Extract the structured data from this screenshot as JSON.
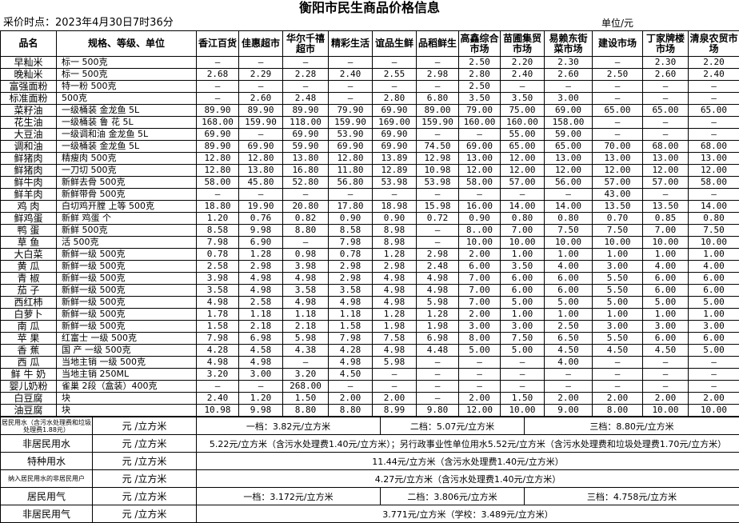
{
  "header": {
    "title": "衡阳市民生商品价格信息",
    "time": "采价时点：2023年4月30日7时36分",
    "unit": "单位/元"
  },
  "table": {
    "columns": [
      "品名",
      "规格、等级、单位",
      "香江百货",
      "佳惠超市",
      "华尔千禧超市",
      "精彩生活",
      "谊品生鲜",
      "品稻鲜生",
      "高鑫综合市场",
      "苗圃集贸市场",
      "易赖东街菜市场",
      "建设市场",
      "丁家牌楼市场",
      "清泉农贸市场"
    ],
    "rows": [
      [
        "早籼米",
        "标一 500克",
        "—",
        "—",
        "—",
        "—",
        "—",
        "—",
        "2.50",
        "2.20",
        "2.30",
        "—",
        "2.30",
        "2.20"
      ],
      [
        "晚籼米",
        "标一 500克",
        "2.68",
        "2.29",
        "2.28",
        "2.40",
        "2.55",
        "2.98",
        "2.80",
        "2.40",
        "2.60",
        "2.50",
        "2.60",
        "2.40"
      ],
      [
        "富强面粉",
        "特一粉 500克",
        "—",
        "—",
        "—",
        "—",
        "—",
        "—",
        "2.50",
        "—",
        "—",
        "—",
        "—",
        "—"
      ],
      [
        "标准面粉",
        "500克",
        "—",
        "2.60",
        "2.48",
        "—",
        "2.80",
        "6.80",
        "3.50",
        "3.50",
        "3.00",
        "—",
        "—",
        "—"
      ],
      [
        "菜籽油",
        "一级桶装 金龙鱼 5L",
        "89.90",
        "89.90",
        "89.90",
        "79.90",
        "69.90",
        "89.00",
        "79.00",
        "75.00",
        "69.00",
        "65.00",
        "65.00",
        "65.00"
      ],
      [
        "花生油",
        "一级桶装 鲁 花 5L",
        "168.00",
        "159.90",
        "118.00",
        "159.90",
        "169.00",
        "159.90",
        "160.00",
        "160.00",
        "158.00",
        "—",
        "—",
        "—"
      ],
      [
        "大豆油",
        "一级调和油 金龙鱼 5L",
        "69.90",
        "—",
        "69.90",
        "53.90",
        "69.90",
        "—",
        "—",
        "55.00",
        "59.00",
        "—",
        "—",
        "—"
      ],
      [
        "调和油",
        "一级桶装 金龙鱼 5L",
        "89.90",
        "69.90",
        "59.90",
        "69.90",
        "69.90",
        "74.50",
        "69.00",
        "65.00",
        "65.00",
        "70.00",
        "68.00",
        "68.00"
      ],
      [
        "鲜猪肉",
        "精瘦肉 500克",
        "12.80",
        "12.80",
        "13.80",
        "12.80",
        "13.89",
        "12.98",
        "13.00",
        "12.00",
        "13.00",
        "13.00",
        "13.00",
        "13.00"
      ],
      [
        "鲜猪肉",
        "一刀切 500克",
        "12.80",
        "13.80",
        "16.80",
        "11.80",
        "12.89",
        "10.98",
        "12.00",
        "12.00",
        "12.00",
        "12.00",
        "12.00",
        "12.00"
      ],
      [
        "鲜牛肉",
        "新鲜去骨 500克",
        "58.00",
        "45.80",
        "52.80",
        "56.80",
        "53.98",
        "53.98",
        "58.00",
        "57.00",
        "56.00",
        "57.00",
        "57.00",
        "58.00"
      ],
      [
        "鲜羊肉",
        "新鲜带骨 500克",
        "—",
        "—",
        "—",
        "—",
        "—",
        "—",
        "—",
        "—",
        "—",
        "43.00",
        "—",
        "—"
      ],
      [
        "鸡 肉",
        "白切鸡开膛 上等 500克",
        "18.80",
        "19.90",
        "20.80",
        "17.80",
        "18.98",
        "15.98",
        "16.00",
        "14.00",
        "14.00",
        "13.50",
        "13.50",
        "14.00"
      ],
      [
        "鲜鸡蛋",
        "新鲜 鸡蛋 个",
        "1.20",
        "0.76",
        "0.82",
        "0.90",
        "0.90",
        "0.72",
        "0.90",
        "0.80",
        "0.80",
        "0.70",
        "0.85",
        "0.80"
      ],
      [
        "鸭 蛋",
        "新鲜 500克",
        "8.58",
        "9.98",
        "8.80",
        "8.58",
        "8.98",
        "—",
        "8..00",
        "7.00",
        "7.50",
        "7.50",
        "7.00",
        "7.50"
      ],
      [
        "草 鱼",
        "活 500克",
        "7.98",
        "6.90",
        "—",
        "7.98",
        "8.98",
        "—",
        "10.00",
        "10.00",
        "10.00",
        "10.00",
        "10.00",
        "10.00"
      ],
      [
        "大白菜",
        "新鲜一级 500克",
        "0.78",
        "1.28",
        "0.98",
        "0.78",
        "1.28",
        "2.98",
        "2.00",
        "1.00",
        "1.00",
        "1.00",
        "1.00",
        "1.00"
      ],
      [
        "黄 瓜",
        "新鲜一级 500克",
        "2.58",
        "2.98",
        "3.98",
        "2.98",
        "2.98",
        "2.48",
        "6.00",
        "3.50",
        "4.00",
        "3.00",
        "4.00",
        "4.00"
      ],
      [
        "青 椒",
        "新鲜一级 500克",
        "3.98",
        "4.98",
        "4.98",
        "2.98",
        "4.98",
        "4.98",
        "7.00",
        "6.00",
        "6.00",
        "5.50",
        "6.00",
        "6.00"
      ],
      [
        "茄 子",
        "新鲜一级 500克",
        "3.58",
        "4.98",
        "3.58",
        "3.58",
        "4.98",
        "4.98",
        "7.00",
        "6.00",
        "6.00",
        "5.50",
        "6.00",
        "6.00"
      ],
      [
        "西红柿",
        "新鲜一级 500克",
        "4.98",
        "2.58",
        "4.98",
        "4.98",
        "4.98",
        "5.98",
        "7.00",
        "5.00",
        "5.00",
        "5.00",
        "5.00",
        "5.00"
      ],
      [
        "白萝卜",
        "新鲜一级 500克",
        "1.78",
        "1.18",
        "1.18",
        "1.18",
        "1.28",
        "1.28",
        "2.00",
        "1.00",
        "1.00",
        "1.00",
        "1.00",
        "1.00"
      ],
      [
        "南 瓜",
        "新鲜一级 500克",
        "1.58",
        "2.18",
        "2.18",
        "1.58",
        "1.98",
        "1.98",
        "3.00",
        "3.00",
        "2.50",
        "3.00",
        "3.00",
        "3.00"
      ],
      [
        "苹 果",
        "红富士 一级 500克",
        "7.98",
        "6.98",
        "5.98",
        "7.98",
        "7.58",
        "6.98",
        "8.00",
        "7.50",
        "6.50",
        "5.50",
        "6.00",
        "6.00"
      ],
      [
        "香 蕉",
        "国 产 一级 500克",
        "4.28",
        "4.58",
        "4.38",
        "4.28",
        "4.98",
        "4.48",
        "5.00",
        "5.00",
        "4.50",
        "4.50",
        "4.50",
        "5.00"
      ],
      [
        "西 瓜",
        "当地主销 一级 500克",
        "4.98",
        "4.98",
        "—",
        "4.98",
        "5.98",
        "—",
        "—",
        "—",
        "4.00",
        "—",
        "—",
        "—"
      ],
      [
        "鲜 牛 奶",
        "当地主销 250ML",
        "3.20",
        "3.00",
        "3.20",
        "4.50",
        "—",
        "—",
        "—",
        "—",
        "—",
        "—",
        "—",
        "—"
      ],
      [
        "婴儿奶粉",
        "雀巢 2段（盒装）400克",
        "—",
        "—",
        "268.00",
        "—",
        "—",
        "—",
        "—",
        "—",
        "—",
        "—",
        "—",
        "—"
      ],
      [
        "白豆腐",
        "块",
        "2.40",
        "1.20",
        "1.50",
        "2.00",
        "2.00",
        "—",
        "2.00",
        "1.50",
        "2.00",
        "2.00",
        "2.00",
        "2.00"
      ],
      [
        "油豆腐",
        "块",
        "10.98",
        "9.98",
        "8.80",
        "8.80",
        "8.99",
        "9.80",
        "12.00",
        "10.00",
        "9.00",
        "8.00",
        "10.00",
        "10.00"
      ]
    ]
  },
  "utilities": [
    {
      "name": "居民用水（含污水处理费和垃圾处理费1.88元）",
      "unit": "元 /立方米",
      "prices": [
        "一档：3.82元/立方米",
        "二档：5.07元/立方米",
        "三档：8.80元/立方米"
      ]
    },
    {
      "name": "非居民用水",
      "unit": "元 /立方米",
      "prices": [
        "5.22元/立方米（含污水处理费1.40元/立方米）；另行政事业性单位用水5.52元/立方米（含污水处理费和垃圾处理费1.70元/立方米）"
      ]
    },
    {
      "name": "特种用水",
      "unit": "元 /立方米",
      "prices": [
        "11.44元/立方米（含污水处理费1.40元/立方米）"
      ]
    },
    {
      "name": "纳入居民用水的非居民用户",
      "unit": "元 /立方米",
      "prices": [
        "4.27元/立方米（含污水处理费1.40元/立方米）"
      ]
    },
    {
      "name": "居民用气",
      "unit": "元 /立方米",
      "prices": [
        "一档：3.172元/立方米",
        "二档：3.806元/立方米",
        "三档：4.758元/立方米"
      ]
    },
    {
      "name": "非居民用气",
      "unit": "元 /立方米",
      "prices": [
        "3.771元/立方米（学校：3.489元/立方米）"
      ]
    }
  ]
}
